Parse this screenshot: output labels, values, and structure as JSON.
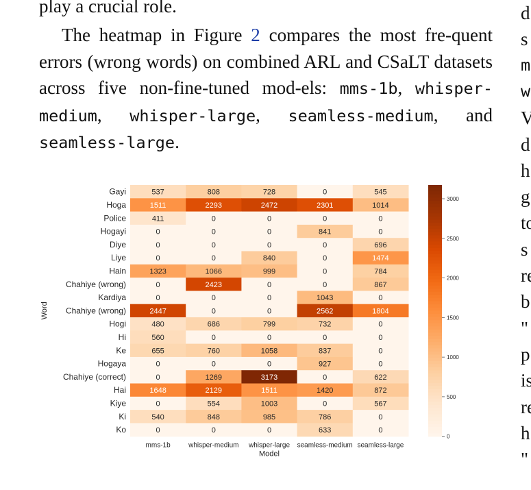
{
  "text": {
    "prev_line": "play a crucial role.",
    "para_part1": "The heatmap in Figure ",
    "fig_ref": "2",
    "para_part2": " compares the most fre-quent errors (wrong words) on combined ARL and CSaLT datasets across five non-fine-tuned mod-els: ",
    "model1": "mms-1b",
    "sep1": ", ",
    "model2": "whisper-medium",
    "sep2": ", ",
    "model3": "whisper-large",
    "sep3": ", ",
    "model4": "seamless-medium",
    "sep4": ", and ",
    "model5": "seamless-large",
    "end": "."
  },
  "right_col_fragments": [
    "d",
    "s",
    "m",
    "w",
    "V",
    "d",
    "h",
    "g",
    "to",
    "s",
    "re",
    "b",
    "\"",
    "p",
    "is",
    "re",
    "h",
    "\""
  ],
  "chart_data": {
    "type": "heatmap",
    "xlabel": "Model",
    "ylabel": "Word",
    "x": [
      "mms-1b",
      "whisper-medium",
      "whisper-large",
      "seamless-medium",
      "seamless-large"
    ],
    "y": [
      "Gayi",
      "Hoga",
      "Police",
      "Hogayi",
      "Diye",
      "Liye",
      "Hain",
      "Chahiye (wrong)",
      "Kardiya",
      "Chahiye (wrong)",
      "Hogi",
      "Hi",
      "Ke",
      "Hogaya",
      "Chahiye (correct)",
      "Hai",
      "Kiye",
      "Ki",
      "Ko"
    ],
    "values": [
      [
        537,
        808,
        728,
        0,
        545
      ],
      [
        1511,
        2293,
        2472,
        2301,
        1014
      ],
      [
        411,
        0,
        0,
        0,
        0
      ],
      [
        0,
        0,
        0,
        841,
        0
      ],
      [
        0,
        0,
        0,
        0,
        696
      ],
      [
        0,
        0,
        840,
        0,
        1474
      ],
      [
        1323,
        1066,
        999,
        0,
        784
      ],
      [
        0,
        2423,
        0,
        0,
        867
      ],
      [
        0,
        0,
        0,
        1043,
        0
      ],
      [
        2447,
        0,
        0,
        2562,
        1804
      ],
      [
        480,
        686,
        799,
        732,
        0
      ],
      [
        560,
        0,
        0,
        0,
        0
      ],
      [
        655,
        760,
        1058,
        837,
        0
      ],
      [
        0,
        0,
        0,
        927,
        0
      ],
      [
        0,
        1269,
        3173,
        0,
        622
      ],
      [
        1648,
        2129,
        1511,
        1420,
        872
      ],
      [
        0,
        554,
        1003,
        0,
        567
      ],
      [
        540,
        848,
        985,
        786,
        0
      ],
      [
        0,
        0,
        0,
        633,
        0
      ]
    ],
    "colorbar": {
      "min": 0,
      "max": 3173,
      "ticks": [
        0,
        500,
        1000,
        1500,
        2000,
        2500,
        3000
      ]
    },
    "colormap": [
      "#fff5eb",
      "#fee6ce",
      "#fdd0a2",
      "#fdae6b",
      "#fd8d3c",
      "#f16913",
      "#d94801",
      "#a63603",
      "#7f2704"
    ]
  }
}
